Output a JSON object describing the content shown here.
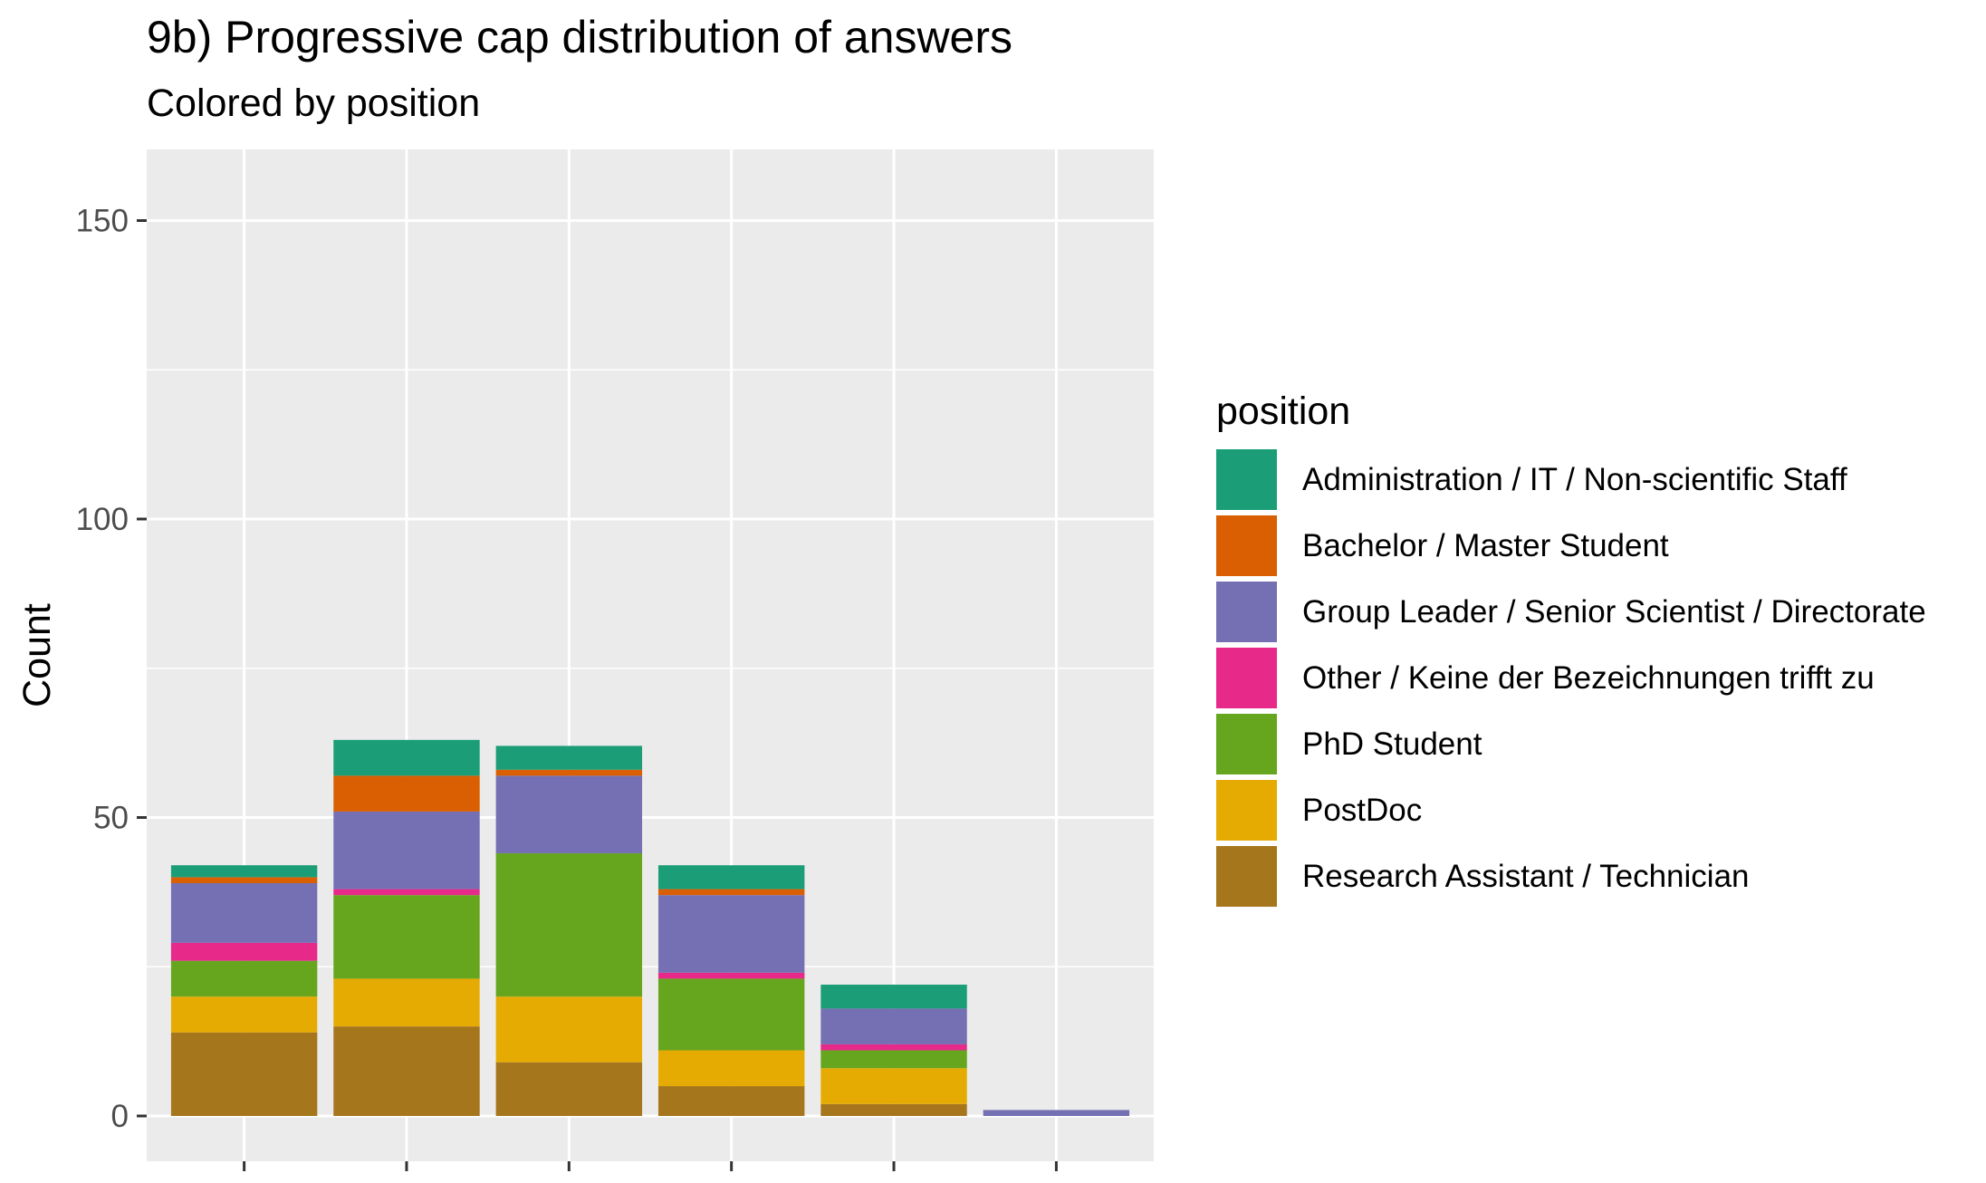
{
  "chart_data": {
    "type": "bar",
    "stacked": true,
    "title": "9b) Progressive cap distribution of answers",
    "subtitle": "Colored by  position",
    "xlabel": "",
    "ylabel": "Count",
    "ylim": [
      -8,
      150
    ],
    "yticks": [
      0,
      50,
      100,
      150
    ],
    "grid": true,
    "legend": {
      "title": "position",
      "position": "right"
    },
    "categories": [
      "",
      "",
      "",
      "",
      "",
      ""
    ],
    "series": [
      {
        "name": "Research Assistant / Technician",
        "color": "#A6761D",
        "values": [
          14,
          15,
          9,
          5,
          2,
          0
        ]
      },
      {
        "name": "PostDoc",
        "color": "#E6AB02",
        "values": [
          6,
          8,
          11,
          6,
          6,
          0
        ]
      },
      {
        "name": "PhD Student",
        "color": "#66A61E",
        "values": [
          6,
          14,
          24,
          12,
          3,
          0
        ]
      },
      {
        "name": "Other / Keine der Bezeichnungen trifft zu",
        "color": "#E7298A",
        "values": [
          3,
          1,
          0,
          1,
          1,
          0
        ]
      },
      {
        "name": "Group Leader / Senior Scientist / Directorate",
        "color": "#7570B3",
        "values": [
          10,
          13,
          13,
          13,
          6,
          1
        ]
      },
      {
        "name": "Bachelor / Master Student",
        "color": "#D95F02",
        "values": [
          1,
          6,
          1,
          1,
          0,
          0
        ]
      },
      {
        "name": "Administration / IT / Non-scientific Staff",
        "color": "#1B9E77",
        "values": [
          2,
          6,
          4,
          4,
          4,
          0
        ]
      }
    ],
    "legend_order": [
      "Administration / IT / Non-scientific Staff",
      "Bachelor / Master Student",
      "Group Leader / Senior Scientist / Directorate",
      "Other / Keine der Bezeichnungen trifft zu",
      "PhD Student",
      "PostDoc",
      "Research Assistant / Technician"
    ],
    "colors": {
      "panel": "#EBEBEB",
      "grid": "#FFFFFF"
    }
  }
}
